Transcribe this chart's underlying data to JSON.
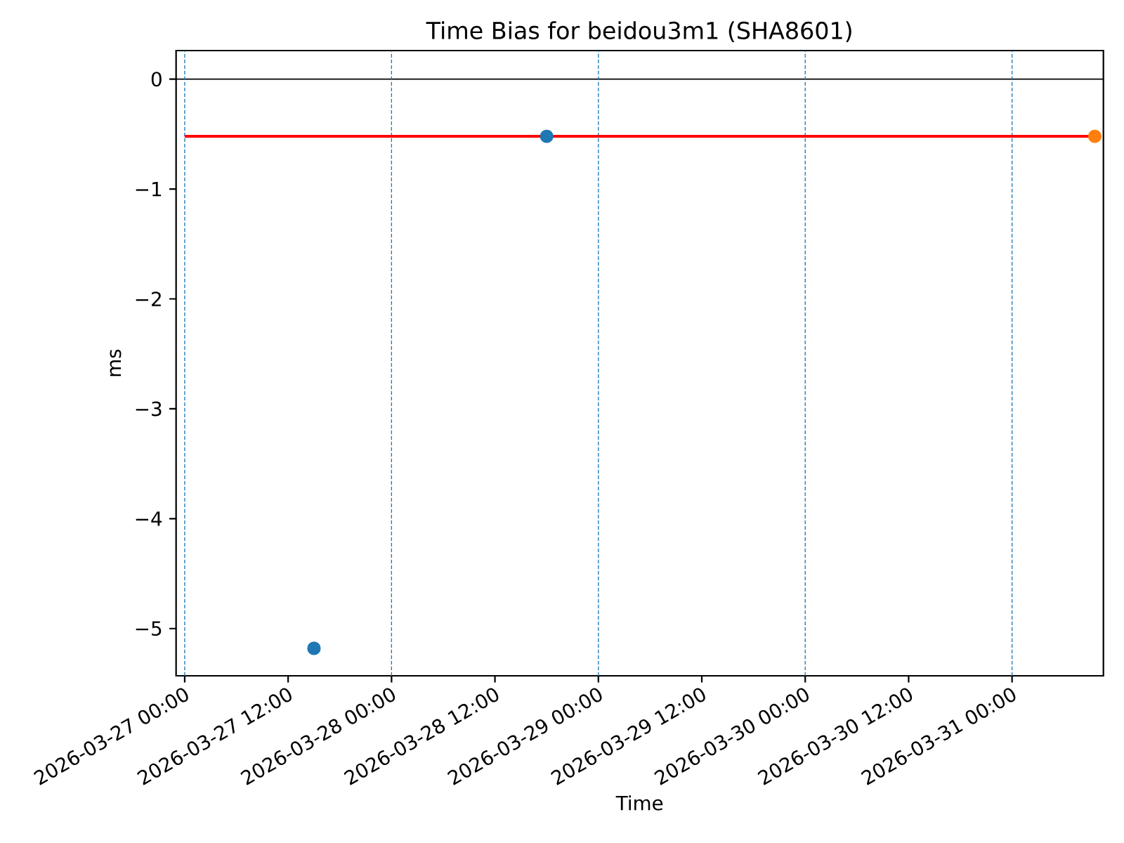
{
  "chart_data": {
    "type": "scatter",
    "title": "Time Bias for beidou3m1 (SHA8601)",
    "xlabel": "Time",
    "ylabel": "ms",
    "marker": "circle",
    "series": [
      {
        "type": "line",
        "x": [
          "2026-03-27T00:00",
          "2026-03-31T09:36"
        ],
        "values": [
          -0.52,
          -0.52
        ],
        "color": "#ff0000",
        "marker": "none",
        "line_style": "solid"
      },
      {
        "x": [
          "2026-03-27T15:00",
          "2026-03-28T18:00"
        ],
        "values": [
          -5.18,
          -0.52
        ],
        "color": "#1f77b4"
      },
      {
        "x": [
          "2026-03-31T09:36"
        ],
        "values": [
          -0.52
        ],
        "color": "#ff7f0e"
      }
    ],
    "xlim": [
      "2026-03-26T23:00",
      "2026-03-31T10:36"
    ],
    "xticks": [
      {
        "value": "2026-03-27T00:00",
        "label": "2026-03-27 00:00"
      },
      {
        "value": "2026-03-27T12:00",
        "label": "2026-03-27 12:00"
      },
      {
        "value": "2026-03-28T00:00",
        "label": "2026-03-28 00:00"
      },
      {
        "value": "2026-03-28T12:00",
        "label": "2026-03-28 12:00"
      },
      {
        "value": "2026-03-29T00:00",
        "label": "2026-03-29 00:00"
      },
      {
        "value": "2026-03-29T12:00",
        "label": "2026-03-29 12:00"
      },
      {
        "value": "2026-03-30T00:00",
        "label": "2026-03-30 00:00"
      },
      {
        "value": "2026-03-30T12:00",
        "label": "2026-03-30 12:00"
      },
      {
        "value": "2026-03-31T00:00",
        "label": "2026-03-31 00:00"
      }
    ],
    "ylim": [
      -5.43,
      0.26
    ],
    "yticks": [
      {
        "value": -5,
        "label": "−5"
      },
      {
        "value": -4,
        "label": "−4"
      },
      {
        "value": -3,
        "label": "−3"
      },
      {
        "value": -2,
        "label": "−2"
      },
      {
        "value": -1,
        "label": "−1"
      },
      0
    ],
    "ref_lines": [
      {
        "axis": "y",
        "value": 0,
        "color": "#000000",
        "line_style": "solid"
      },
      {
        "axis": "x",
        "value": "2026-03-27T00:00",
        "color": "#1f77b4",
        "line_style": "dashed"
      },
      {
        "axis": "x",
        "value": "2026-03-28T00:00",
        "color": "#1f77b4",
        "line_style": "dashed"
      },
      {
        "axis": "x",
        "value": "2026-03-29T00:00",
        "color": "#1f77b4",
        "line_style": "dashed"
      },
      {
        "axis": "x",
        "value": "2026-03-30T00:00",
        "color": "#1f77b4",
        "line_style": "dashed"
      },
      {
        "axis": "x",
        "value": "2026-03-31T00:00",
        "color": "#1f77b4",
        "line_style": "dashed"
      }
    ]
  }
}
